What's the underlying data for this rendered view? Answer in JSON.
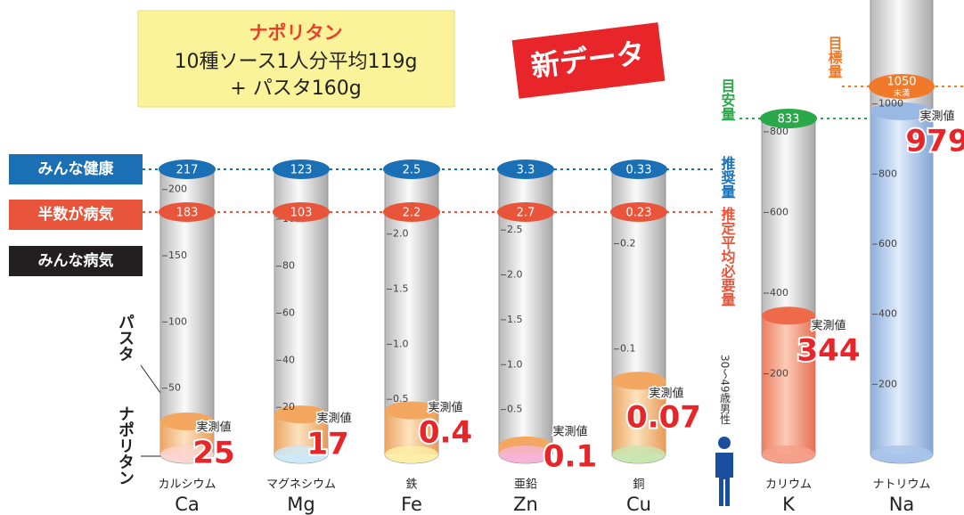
{
  "header": {
    "title": "ナポリタン",
    "line1": "10種ソース1人分平均119g",
    "line2": "+ パスタ160g"
  },
  "badge": "新データ",
  "legend": [
    "みんな健康",
    "半数が病気",
    "みんな病気"
  ],
  "side_labels": {
    "pasta": "パスタ",
    "napolitan": "ナポリタン"
  },
  "line_labels": {
    "rda": "推奨量",
    "ear": "推定平均必要量",
    "ai": "目安量",
    "dg": "目標量"
  },
  "person": "30〜49歳男性",
  "measured_label": "実測値",
  "columns": [
    {
      "name": "カルシウム",
      "symbol": "Ca",
      "rda": 217,
      "ear": 183,
      "value": 25,
      "ticks": [
        200,
        150,
        100,
        50
      ]
    },
    {
      "name": "マグネシウム",
      "symbol": "Mg",
      "rda": 123,
      "ear": 103,
      "value": 17,
      "ticks": [
        100,
        80,
        60,
        40,
        20
      ]
    },
    {
      "name": "鉄",
      "symbol": "Fe",
      "rda": 2.5,
      "ear": 2.2,
      "value": 0.4,
      "ticks": [
        {
          "value": 2,
          "label": "2.0"
        },
        1.5,
        {
          "value": 1,
          "label": "1.0"
        },
        0.5
      ]
    },
    {
      "name": "亜鉛",
      "symbol": "Zn",
      "rda": 3.3,
      "ear": 2.7,
      "value": 0.1,
      "ticks": [
        2.5,
        {
          "value": 2,
          "label": "2.0"
        },
        1.5,
        {
          "value": 1,
          "label": "1.0"
        },
        0.5
      ]
    },
    {
      "name": "銅",
      "symbol": "Cu",
      "rda": 0.33,
      "ear": 0.23,
      "value": 0.07,
      "ticks": [
        0.2,
        0.1
      ]
    },
    {
      "name": "カリウム",
      "symbol": "K",
      "ai": 833,
      "value": 344,
      "ticks": [
        800,
        600,
        400,
        200
      ]
    },
    {
      "name": "ナトリウム",
      "symbol": "Na",
      "dg": 1050,
      "dg_note": "未満",
      "value": 979,
      "ticks": [
        1000,
        800,
        600,
        400,
        200
      ]
    }
  ]
}
